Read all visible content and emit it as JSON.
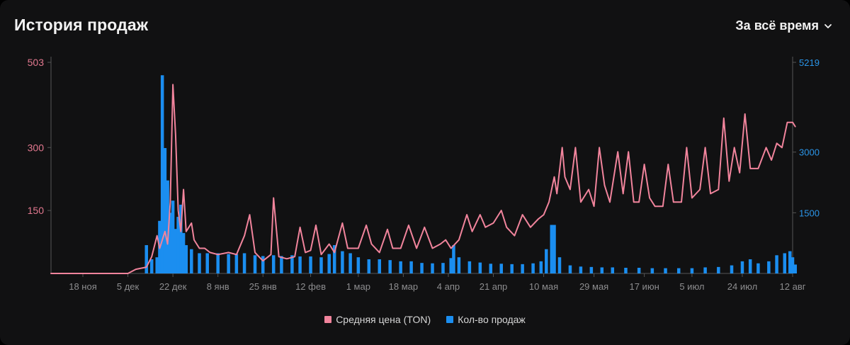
{
  "header": {
    "title": "История продаж",
    "range_label": "За всё время"
  },
  "colors": {
    "price": "#f1849c",
    "sales": "#1b8ef0",
    "left_axis": "#e2788f",
    "right_axis": "#2b95e8"
  },
  "legend": {
    "items": [
      {
        "label": "Средняя цена (TON)",
        "color": "#f1849c"
      },
      {
        "label": "Кол-во продаж",
        "color": "#1b8ef0"
      }
    ]
  },
  "chart_data": {
    "type": "bar+line",
    "title": "История продаж",
    "x_tick_labels": [
      "18 ноя",
      "5 дек",
      "22 дек",
      "8 янв",
      "25 янв",
      "12 фев",
      "1 мар",
      "18 мар",
      "4 апр",
      "21 апр",
      "10 мая",
      "29 мая",
      "17 июн",
      "5 июл",
      "24 июл",
      "12 авг"
    ],
    "left_axis": {
      "ticks": [
        503,
        300,
        150
      ],
      "ylim": [
        0,
        503
      ],
      "color": "pink"
    },
    "right_axis": {
      "ticks": [
        5219,
        3000,
        1500
      ],
      "ylim": [
        0,
        5219
      ],
      "color": "blue"
    },
    "legend_position": "bottom-center",
    "series": [
      {
        "name": "Средняя цена (TON)",
        "kind": "line",
        "axis": "left",
        "points": [
          [
            "5 дек",
            0
          ],
          [
            "8 дек",
            10
          ],
          [
            "12 дек",
            15
          ],
          [
            "14 дек",
            40
          ],
          [
            "16 дек",
            90
          ],
          [
            "17 дек",
            60
          ],
          [
            "19 дек",
            100
          ],
          [
            "20 дек",
            70
          ],
          [
            "21 дек",
            170
          ],
          [
            "22 дек",
            450
          ],
          [
            "23 дек",
            330
          ],
          [
            "24 дек",
            150
          ],
          [
            "25 дек",
            100
          ],
          [
            "26 дек",
            200
          ],
          [
            "27 дек",
            100
          ],
          [
            "29 дек",
            120
          ],
          [
            "30 дек",
            80
          ],
          [
            "1 янв",
            60
          ],
          [
            "3 янв",
            60
          ],
          [
            "5 янв",
            50
          ],
          [
            "8 янв",
            45
          ],
          [
            "12 янв",
            50
          ],
          [
            "15 янв",
            45
          ],
          [
            "18 янв",
            90
          ],
          [
            "20 янв",
            140
          ],
          [
            "22 янв",
            50
          ],
          [
            "25 янв",
            30
          ],
          [
            "28 янв",
            45
          ],
          [
            "29 янв",
            180
          ],
          [
            "31 янв",
            40
          ],
          [
            "3 фев",
            35
          ],
          [
            "6 фев",
            40
          ],
          [
            "8 фев",
            110
          ],
          [
            "10 фев",
            50
          ],
          [
            "12 фев",
            55
          ],
          [
            "14 фев",
            115
          ],
          [
            "16 фев",
            45
          ],
          [
            "19 фев",
            70
          ],
          [
            "21 фев",
            50
          ],
          [
            "24 фев",
            120
          ],
          [
            "26 фев",
            60
          ],
          [
            "1 мар",
            60
          ],
          [
            "4 мар",
            115
          ],
          [
            "6 мар",
            70
          ],
          [
            "9 мар",
            50
          ],
          [
            "12 мар",
            105
          ],
          [
            "14 мар",
            60
          ],
          [
            "17 мар",
            60
          ],
          [
            "20 мар",
            115
          ],
          [
            "23 мар",
            60
          ],
          [
            "26 мар",
            110
          ],
          [
            "29 мар",
            60
          ],
          [
            "1 апр",
            70
          ],
          [
            "3 апр",
            80
          ],
          [
            "5 апр",
            60
          ],
          [
            "8 апр",
            80
          ],
          [
            "11 апр",
            140
          ],
          [
            "13 апр",
            100
          ],
          [
            "16 апр",
            140
          ],
          [
            "18 апр",
            110
          ],
          [
            "21 апр",
            120
          ],
          [
            "24 апр",
            150
          ],
          [
            "26 апр",
            110
          ],
          [
            "29 апр",
            90
          ],
          [
            "2 мая",
            140
          ],
          [
            "5 мая",
            110
          ],
          [
            "8 мая",
            130
          ],
          [
            "10 мая",
            140
          ],
          [
            "12 мая",
            170
          ],
          [
            "14 мая",
            230
          ],
          [
            "15 мая",
            190
          ],
          [
            "17 мая",
            300
          ],
          [
            "18 мая",
            230
          ],
          [
            "20 мая",
            200
          ],
          [
            "22 мая",
            300
          ],
          [
            "24 мая",
            170
          ],
          [
            "27 мая",
            200
          ],
          [
            "29 мая",
            160
          ],
          [
            "31 мая",
            300
          ],
          [
            "2 июн",
            210
          ],
          [
            "4 июн",
            170
          ],
          [
            "7 июн",
            290
          ],
          [
            "9 июн",
            190
          ],
          [
            "11 июн",
            290
          ],
          [
            "13 июн",
            170
          ],
          [
            "15 июн",
            170
          ],
          [
            "17 июн",
            260
          ],
          [
            "19 июн",
            180
          ],
          [
            "21 июн",
            160
          ],
          [
            "24 июн",
            160
          ],
          [
            "26 июн",
            260
          ],
          [
            "28 июн",
            170
          ],
          [
            "1 июл",
            170
          ],
          [
            "3 июл",
            300
          ],
          [
            "5 июл",
            180
          ],
          [
            "8 июл",
            200
          ],
          [
            "10 июл",
            300
          ],
          [
            "12 июл",
            190
          ],
          [
            "15 июл",
            200
          ],
          [
            "17 июл",
            370
          ],
          [
            "19 июл",
            220
          ],
          [
            "21 июл",
            300
          ],
          [
            "23 июл",
            240
          ],
          [
            "25 июл",
            380
          ],
          [
            "27 июл",
            250
          ],
          [
            "30 июл",
            250
          ],
          [
            "2 авг",
            300
          ],
          [
            "4 авг",
            270
          ],
          [
            "6 авг",
            310
          ],
          [
            "8 авг",
            300
          ],
          [
            "10 авг",
            360
          ],
          [
            "12 авг",
            360
          ],
          [
            "13 авг",
            350
          ]
        ]
      },
      {
        "name": "Кол-во продаж",
        "kind": "bar",
        "axis": "right",
        "points": [
          [
            "12 дек",
            700
          ],
          [
            "14 дек",
            350
          ],
          [
            "16 дек",
            400
          ],
          [
            "17 дек",
            1300
          ],
          [
            "18 дек",
            4900
          ],
          [
            "19 дек",
            3100
          ],
          [
            "20 дек",
            2300
          ],
          [
            "21 дек",
            1500
          ],
          [
            "22 дек",
            1800
          ],
          [
            "23 дек",
            1100
          ],
          [
            "24 дек",
            1400
          ],
          [
            "25 дек",
            1700
          ],
          [
            "26 дек",
            1000
          ],
          [
            "27 дек",
            700
          ],
          [
            "29 дек",
            600
          ],
          [
            "1 янв",
            500
          ],
          [
            "4 янв",
            500
          ],
          [
            "8 янв",
            500
          ],
          [
            "12 янв",
            480
          ],
          [
            "15 янв",
            480
          ],
          [
            "18 янв",
            500
          ],
          [
            "22 янв",
            450
          ],
          [
            "25 янв",
            430
          ],
          [
            "29 янв",
            450
          ],
          [
            "1 фев",
            430
          ],
          [
            "5 фев",
            450
          ],
          [
            "8 фев",
            420
          ],
          [
            "12 фев",
            420
          ],
          [
            "16 фев",
            400
          ],
          [
            "19 фев",
            480
          ],
          [
            "21 фев",
            700
          ],
          [
            "24 фев",
            550
          ],
          [
            "27 фев",
            500
          ],
          [
            "1 мар",
            400
          ],
          [
            "5 мар",
            350
          ],
          [
            "9 мар",
            350
          ],
          [
            "13 мар",
            330
          ],
          [
            "17 мар",
            300
          ],
          [
            "21 мар",
            300
          ],
          [
            "25 мар",
            260
          ],
          [
            "29 мар",
            250
          ],
          [
            "2 апр",
            260
          ],
          [
            "5 апр",
            380
          ],
          [
            "6 апр",
            700
          ],
          [
            "8 апр",
            400
          ],
          [
            "12 апр",
            300
          ],
          [
            "16 апр",
            270
          ],
          [
            "20 апр",
            240
          ],
          [
            "24 апр",
            240
          ],
          [
            "28 апр",
            230
          ],
          [
            "2 мая",
            230
          ],
          [
            "6 мая",
            250
          ],
          [
            "9 мая",
            300
          ],
          [
            "11 мая",
            600
          ],
          [
            "13 мая",
            1200
          ],
          [
            "14 мая",
            1200
          ],
          [
            "16 мая",
            400
          ],
          [
            "20 мая",
            200
          ],
          [
            "24 мая",
            170
          ],
          [
            "28 мая",
            160
          ],
          [
            "1 июн",
            150
          ],
          [
            "5 июн",
            150
          ],
          [
            "10 июн",
            140
          ],
          [
            "15 июн",
            140
          ],
          [
            "20 июн",
            130
          ],
          [
            "25 июн",
            130
          ],
          [
            "30 июн",
            130
          ],
          [
            "5 июл",
            130
          ],
          [
            "10 июл",
            150
          ],
          [
            "15 июл",
            160
          ],
          [
            "20 июл",
            200
          ],
          [
            "24 июл",
            300
          ],
          [
            "27 июл",
            350
          ],
          [
            "30 июл",
            250
          ],
          [
            "3 авг",
            300
          ],
          [
            "6 авг",
            450
          ],
          [
            "9 авг",
            500
          ],
          [
            "11 авг",
            550
          ],
          [
            "12 авг",
            400
          ],
          [
            "13 авг",
            220
          ]
        ]
      }
    ]
  }
}
